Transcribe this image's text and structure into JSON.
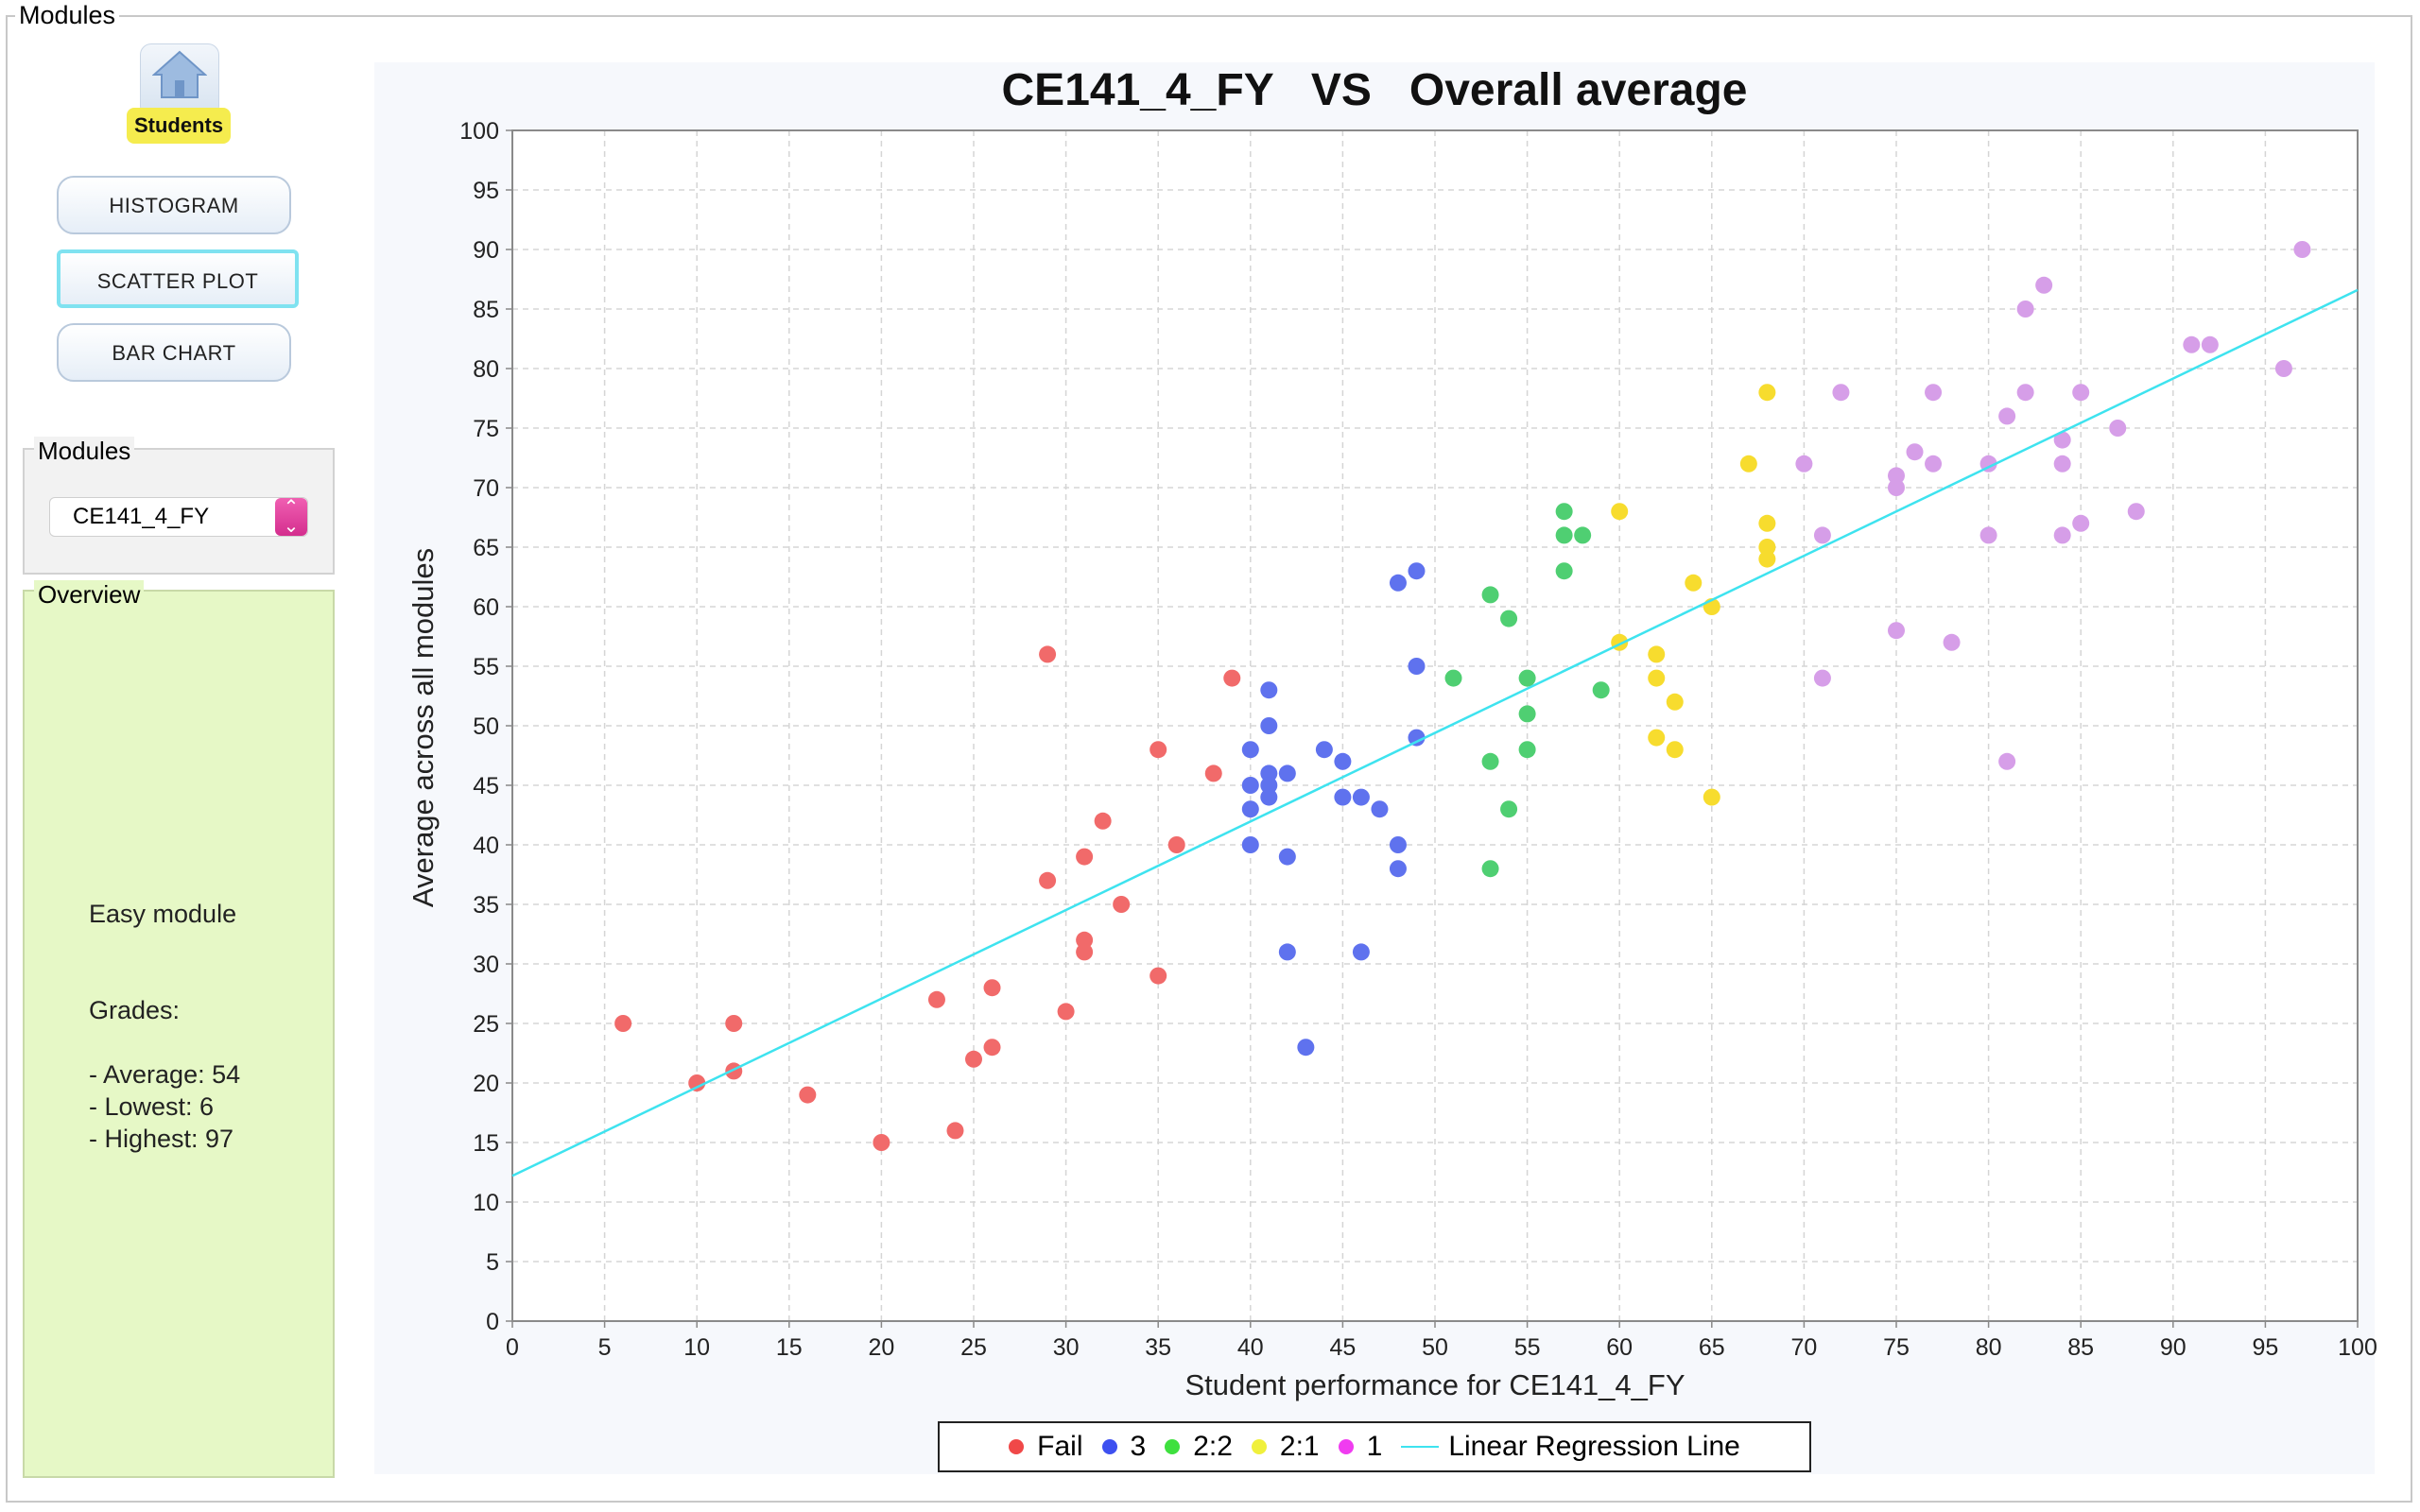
{
  "window": {
    "frame_title": "Modules"
  },
  "sidebar": {
    "students_label": "Students",
    "buttons": {
      "histogram": "HISTOGRAM",
      "scatter": "SCATTER PLOT",
      "bar": "BAR CHART"
    },
    "modules_group_title": "Modules",
    "module_selected": "CE141_4_FY",
    "overview_group_title": "Overview",
    "overview": {
      "difficulty": "Easy module",
      "grades_heading": "Grades:",
      "average": "- Average: 54",
      "lowest": "- Lowest: 6",
      "highest": "- Highest: 97"
    }
  },
  "colors": {
    "fail": "#f16a6a",
    "third": "#5f72ee",
    "two_two": "#4fcf72",
    "two_one": "#f7dc2e",
    "first": "#d69ee8",
    "regression": "#3ee3ef",
    "legend_fail": "#f04848",
    "legend_third": "#3d50f0",
    "legend_two_two": "#3ee03e",
    "legend_two_one": "#f0f03c",
    "legend_first": "#f03cf0"
  },
  "chart_data": {
    "type": "scatter",
    "title": "CE141_4_FY   VS   Overall average",
    "xlabel": "Student performance for CE141_4_FY",
    "ylabel": "Average across all modules",
    "xlim": [
      0,
      100
    ],
    "ylim": [
      0,
      100
    ],
    "x_ticks": [
      "0",
      "5",
      "10",
      "15",
      "20",
      "25",
      "30",
      "35",
      "40",
      "45",
      "50",
      "55",
      "60",
      "65",
      "70",
      "75",
      "80",
      "85",
      "90",
      "95",
      "100"
    ],
    "y_ticks": [
      "0",
      "5",
      "10",
      "15",
      "20",
      "25",
      "30",
      "35",
      "40",
      "45",
      "50",
      "55",
      "60",
      "65",
      "70",
      "75",
      "80",
      "85",
      "90",
      "95",
      "100"
    ],
    "grid": true,
    "legend_position": "bottom",
    "series": [
      {
        "name": "Fail",
        "color": "#f16a6a",
        "points": [
          [
            6,
            25
          ],
          [
            10,
            20
          ],
          [
            12,
            25
          ],
          [
            12,
            21
          ],
          [
            16,
            19
          ],
          [
            20,
            15
          ],
          [
            23,
            27
          ],
          [
            24,
            16
          ],
          [
            25,
            22
          ],
          [
            26,
            28
          ],
          [
            26,
            23
          ],
          [
            29,
            37
          ],
          [
            29,
            56
          ],
          [
            30,
            26
          ],
          [
            31,
            39
          ],
          [
            31,
            32
          ],
          [
            31,
            31
          ],
          [
            32,
            42
          ],
          [
            33,
            35
          ],
          [
            35,
            48
          ],
          [
            35,
            29
          ],
          [
            36,
            40
          ],
          [
            38,
            46
          ],
          [
            39,
            54
          ]
        ]
      },
      {
        "name": "3",
        "color": "#5f72ee",
        "points": [
          [
            40,
            48
          ],
          [
            40,
            45
          ],
          [
            40,
            43
          ],
          [
            40,
            40
          ],
          [
            41,
            53
          ],
          [
            41,
            50
          ],
          [
            41,
            46
          ],
          [
            41,
            45
          ],
          [
            41,
            44
          ],
          [
            42,
            46
          ],
          [
            42,
            39
          ],
          [
            42,
            31
          ],
          [
            43,
            23
          ],
          [
            44,
            48
          ],
          [
            45,
            47
          ],
          [
            45,
            44
          ],
          [
            46,
            44
          ],
          [
            46,
            31
          ],
          [
            47,
            43
          ],
          [
            48,
            62
          ],
          [
            48,
            40
          ],
          [
            48,
            38
          ],
          [
            49,
            63
          ],
          [
            49,
            55
          ],
          [
            49,
            49
          ]
        ]
      },
      {
        "name": "2:2",
        "color": "#4fcf72",
        "points": [
          [
            51,
            54
          ],
          [
            53,
            61
          ],
          [
            53,
            47
          ],
          [
            53,
            38
          ],
          [
            54,
            59
          ],
          [
            54,
            43
          ],
          [
            55,
            54
          ],
          [
            55,
            51
          ],
          [
            55,
            48
          ],
          [
            57,
            68
          ],
          [
            57,
            66
          ],
          [
            57,
            63
          ],
          [
            58,
            66
          ],
          [
            59,
            53
          ]
        ]
      },
      {
        "name": "2:1",
        "color": "#f7dc2e",
        "points": [
          [
            60,
            68
          ],
          [
            60,
            57
          ],
          [
            62,
            56
          ],
          [
            62,
            54
          ],
          [
            62,
            49
          ],
          [
            63,
            52
          ],
          [
            63,
            48
          ],
          [
            64,
            62
          ],
          [
            65,
            60
          ],
          [
            65,
            44
          ],
          [
            67,
            72
          ],
          [
            68,
            78
          ],
          [
            68,
            67
          ],
          [
            68,
            65
          ],
          [
            68,
            64
          ]
        ]
      },
      {
        "name": "1",
        "color": "#d69ee8",
        "points": [
          [
            70,
            72
          ],
          [
            71,
            66
          ],
          [
            71,
            54
          ],
          [
            72,
            78
          ],
          [
            75,
            71
          ],
          [
            75,
            70
          ],
          [
            75,
            58
          ],
          [
            76,
            73
          ],
          [
            77,
            78
          ],
          [
            77,
            72
          ],
          [
            78,
            57
          ],
          [
            80,
            72
          ],
          [
            80,
            66
          ],
          [
            81,
            76
          ],
          [
            81,
            47
          ],
          [
            82,
            85
          ],
          [
            82,
            78
          ],
          [
            83,
            87
          ],
          [
            84,
            74
          ],
          [
            84,
            72
          ],
          [
            84,
            66
          ],
          [
            85,
            78
          ],
          [
            85,
            67
          ],
          [
            87,
            75
          ],
          [
            88,
            68
          ],
          [
            91,
            82
          ],
          [
            92,
            82
          ],
          [
            96,
            80
          ],
          [
            97,
            90
          ]
        ]
      }
    ],
    "regression": {
      "name": "Linear Regression Line",
      "x": [
        0,
        100
      ],
      "y": [
        12.2,
        86.6
      ]
    }
  }
}
